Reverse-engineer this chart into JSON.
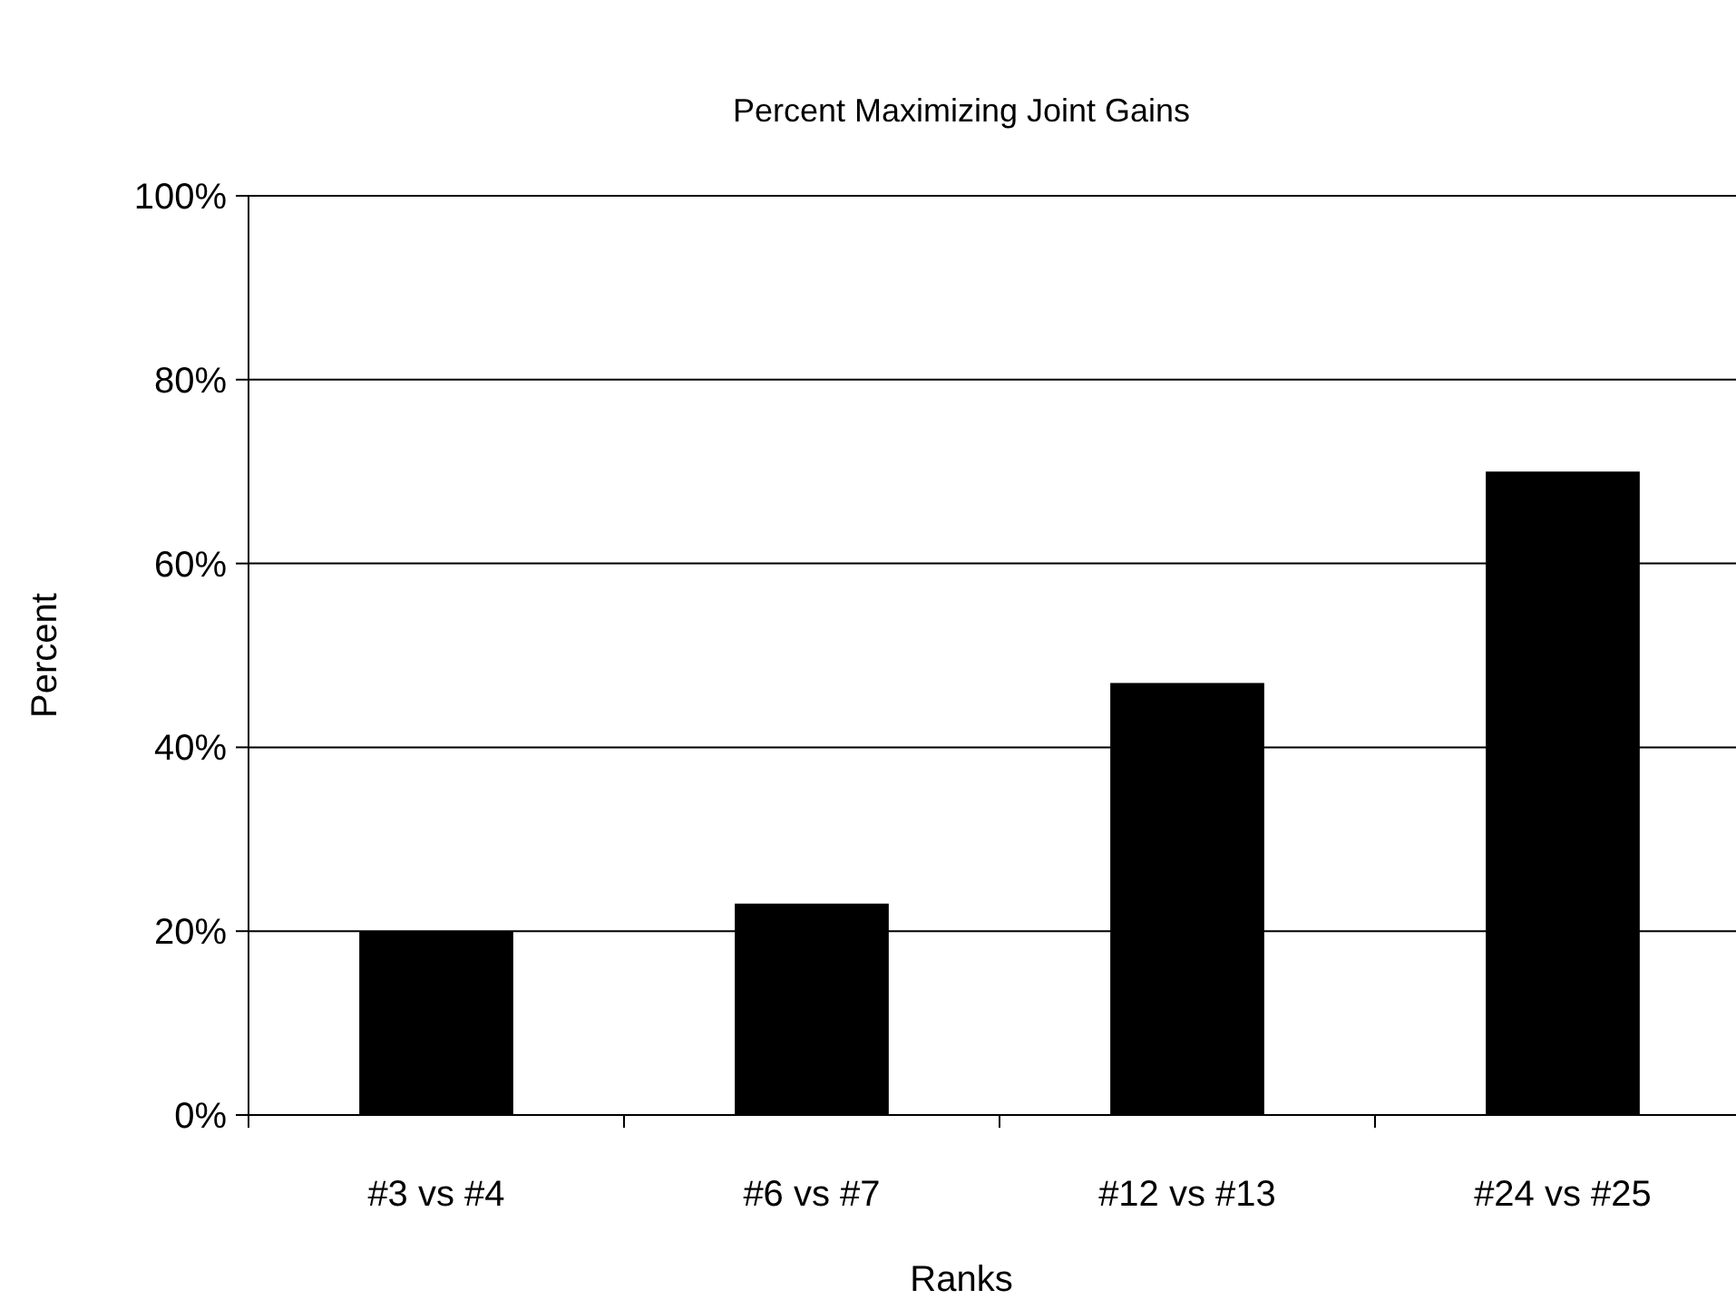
{
  "chart_data": {
    "type": "bar",
    "title": "Percent Maximizing Joint Gains",
    "xlabel": "Ranks",
    "ylabel": "Percent",
    "categories": [
      "#3 vs #4",
      "#6 vs #7",
      "#12 vs #13",
      "#24 vs #25"
    ],
    "values": [
      20,
      23,
      47,
      70
    ],
    "color": "#000000",
    "ylim": [
      0,
      100
    ],
    "yticks": [
      {
        "value": 0,
        "label": "0%"
      },
      {
        "value": 20,
        "label": "20%"
      },
      {
        "value": 40,
        "label": "40%"
      },
      {
        "value": 60,
        "label": "60%"
      },
      {
        "value": 80,
        "label": "80%"
      },
      {
        "value": 100,
        "label": "100%"
      }
    ],
    "grid": "y"
  }
}
